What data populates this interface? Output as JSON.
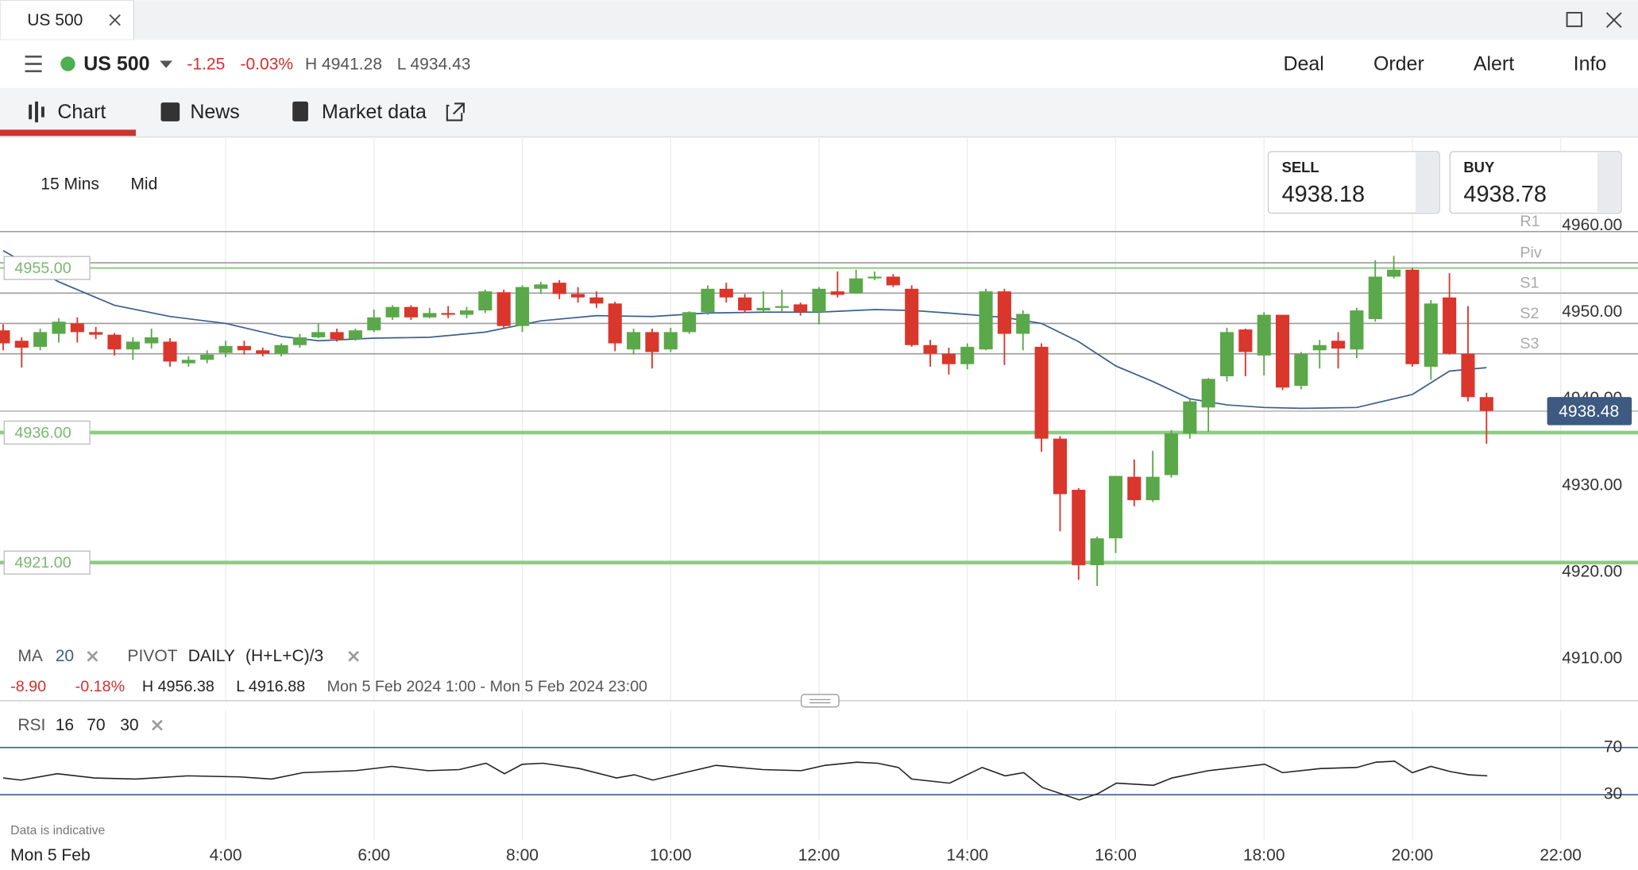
{
  "window": {
    "tab": "US 500"
  },
  "instrument": {
    "name": "US 500",
    "change": "-1.25",
    "change_pct": "-0.03%",
    "high": "H 4941.28",
    "low": "L 4934.43"
  },
  "actions": [
    "Deal",
    "Order",
    "Alert",
    "Info"
  ],
  "tabs": [
    "Chart",
    "News",
    "Market data"
  ],
  "settings": {
    "interval": "15 Mins",
    "price": "Mid"
  },
  "quote": {
    "sell_label": "SELL",
    "sell": "4938.18",
    "buy_label": "BUY",
    "buy": "4938.78"
  },
  "summary": {
    "change": "-8.90",
    "change_pct": "-0.18%",
    "high": "H 4956.38",
    "low": "L 4916.88",
    "range": "Mon 5 Feb 2024 1:00 - Mon 5 Feb 2024 23:00"
  },
  "notes": {
    "disclaimer": "Data is indicative"
  },
  "chart_data": [
    {
      "type": "candlestick",
      "x": [
        1,
        1.25,
        1.5,
        1.75,
        2,
        2.25,
        2.5,
        2.75,
        3,
        3.25,
        3.5,
        3.75,
        4,
        4.25,
        4.5,
        4.75,
        5,
        5.25,
        5.5,
        5.75,
        6,
        6.25,
        6.5,
        6.75,
        7,
        7.25,
        7.5,
        7.75,
        8,
        8.25,
        8.5,
        8.75,
        9,
        9.25,
        9.5,
        9.75,
        10,
        10.25,
        10.5,
        10.75,
        11,
        11.25,
        11.5,
        11.75,
        12,
        12.25,
        12.5,
        12.75,
        13,
        13.25,
        13.5,
        13.75,
        14,
        14.25,
        14.5,
        14.75,
        15,
        15.25,
        15.5,
        15.75,
        16,
        16.25,
        16.5,
        16.75,
        17,
        17.25,
        17.5,
        17.75,
        18,
        18.25,
        18.5,
        18.75,
        19,
        19.25,
        19.5,
        19.75,
        20,
        20.25,
        20.5,
        20.75,
        21
      ],
      "open": [
        4947.8,
        4946.6,
        4945.9,
        4947.4,
        4948.6,
        4947.6,
        4947.3,
        4945.6,
        4946.3,
        4946.5,
        4944.0,
        4944.4,
        4945.2,
        4946.0,
        4945.5,
        4945.1,
        4946.1,
        4947.0,
        4947.6,
        4946.8,
        4947.8,
        4949.3,
        4950.5,
        4949.3,
        4949.8,
        4949.6,
        4950.1,
        4952.2,
        4948.3,
        4952.6,
        4953.3,
        4952.0,
        4951.6,
        4950.9,
        4945.6,
        4947.6,
        4945.6,
        4947.6,
        4949.9,
        4952.6,
        4951.6,
        4950.1,
        4950.4,
        4950.8,
        4949.9,
        4952.3,
        4952.1,
        4953.8,
        4954.0,
        4952.6,
        4946.1,
        4945.1,
        4943.9,
        4945.6,
        4952.3,
        4947.4,
        4945.9,
        4935.3,
        4929.4,
        4920.7,
        4923.8,
        4930.9,
        4928.2,
        4931.1,
        4935.9,
        4938.9,
        4942.5,
        4947.9,
        4944.9,
        4949.6,
        4941.4,
        4945.5,
        4946.6,
        4945.6,
        4949.1,
        4954.0,
        4954.8,
        4943.6,
        4951.6,
        4945.1,
        4940.1
      ],
      "high": [
        4948.5,
        4947,
        4948,
        4949.2,
        4949.3,
        4948.2,
        4947.5,
        4947,
        4948,
        4946.9,
        4944.8,
        4945.5,
        4946.6,
        4946.6,
        4945.8,
        4946.3,
        4947.4,
        4948.6,
        4948,
        4948,
        4950.2,
        4950.7,
        4950.7,
        4950.4,
        4950.6,
        4950.5,
        4952.5,
        4952.5,
        4953,
        4953.4,
        4953.6,
        4952.8,
        4952.3,
        4951.1,
        4948,
        4948,
        4948.1,
        4950,
        4953,
        4953.3,
        4952,
        4952.3,
        4952.5,
        4951,
        4952.8,
        4954.6,
        4954.8,
        4954.6,
        4954.3,
        4953,
        4946.7,
        4945.8,
        4946.3,
        4952.6,
        4952.6,
        4950.1,
        4946.3,
        4935.6,
        4929.6,
        4924,
        4931,
        4932.9,
        4933.9,
        4936.3,
        4939.8,
        4942.3,
        4948.1,
        4948,
        4949.9,
        4949.6,
        4945.3,
        4946.7,
        4947.6,
        4950.4,
        4955.9,
        4956.4,
        4955,
        4951.3,
        4954.4,
        4950.6,
        4940.6
      ],
      "low": [
        4945.5,
        4943.5,
        4945.5,
        4946.4,
        4946.4,
        4946.8,
        4944.9,
        4944.4,
        4945.7,
        4943.6,
        4943.6,
        4944,
        4944.7,
        4945,
        4944.8,
        4944.8,
        4945.8,
        4946.9,
        4946.5,
        4946.6,
        4947.6,
        4949,
        4949,
        4949.2,
        4949.2,
        4949.2,
        4949.8,
        4948,
        4947.6,
        4952,
        4951.4,
        4951,
        4950.4,
        4945.4,
        4945,
        4943.4,
        4945.3,
        4947.4,
        4949.6,
        4951,
        4949.8,
        4950,
        4950,
        4949.5,
        4948.5,
        4951.6,
        4952,
        4953.6,
        4952.8,
        4945.9,
        4943.6,
        4942.7,
        4943.3,
        4945.5,
        4943.8,
        4945.5,
        4933.8,
        4924.6,
        4919,
        4918.3,
        4922.1,
        4927.5,
        4928,
        4930.8,
        4935.3,
        4936.1,
        4941.9,
        4942.5,
        4942.6,
        4940.9,
        4941,
        4943.4,
        4943.4,
        4944.6,
        4948.8,
        4953.8,
        4943.6,
        4942.1,
        4945,
        4939.6,
        4934.7
      ],
      "close": [
        4946.3,
        4945.8,
        4947.6,
        4948.8,
        4947.6,
        4947.3,
        4945.6,
        4946.5,
        4947.0,
        4944.2,
        4944.4,
        4945.0,
        4946.0,
        4945.5,
        4945.1,
        4946.1,
        4947.0,
        4947.6,
        4946.8,
        4947.8,
        4949.3,
        4950.5,
        4949.3,
        4949.8,
        4949.6,
        4950.1,
        4952.3,
        4948.3,
        4952.8,
        4953.1,
        4952.0,
        4951.6,
        4950.9,
        4946.3,
        4947.6,
        4945.3,
        4947.6,
        4949.9,
        4952.6,
        4951.6,
        4950.1,
        4950.4,
        4950.6,
        4949.9,
        4952.6,
        4951.9,
        4953.8,
        4954.0,
        4953.0,
        4946.1,
        4945.1,
        4943.9,
        4945.9,
        4952.3,
        4947.4,
        4949.7,
        4935.3,
        4928.9,
        4920.7,
        4923.8,
        4931.0,
        4928.2,
        4930.9,
        4935.9,
        4939.6,
        4942.2,
        4947.6,
        4945.3,
        4949.6,
        4941.2,
        4945.1,
        4946.1,
        4945.7,
        4950.1,
        4954.0,
        4954.8,
        4943.9,
        4950.9,
        4945.1,
        4940.1,
        4938.5
      ],
      "up_color": "#5aa84a",
      "down_color": "#d9362c",
      "xlim": [
        1,
        23
      ],
      "ylim": [
        4905,
        4970
      ],
      "yticks": [
        {
          "value": 4910,
          "label": "4910.00"
        },
        {
          "value": 4920,
          "label": "4920.00"
        },
        {
          "value": 4930,
          "label": "4930.00"
        },
        {
          "value": 4940,
          "label": "4940.00"
        },
        {
          "value": 4950,
          "label": "4950.00"
        },
        {
          "value": 4960,
          "label": "4960.00"
        }
      ],
      "grid": "x",
      "ma": {
        "name": "MA",
        "period": 20,
        "color": "#3b5f8f",
        "x": [
          1,
          1.75,
          2.5,
          3.25,
          4,
          4.75,
          5.25,
          6,
          6.75,
          7.5,
          8.25,
          9,
          9.75,
          10.5,
          11.25,
          12,
          12.75,
          13.25,
          13.75,
          14.5,
          15,
          15.5,
          16,
          16.5,
          17,
          17.5,
          18,
          18.5,
          19.25,
          20,
          20.5,
          21
        ],
        "values": [
          4957,
          4953.4,
          4950.7,
          4949.4,
          4948.6,
          4947.1,
          4946.6,
          4946.9,
          4947,
          4947.6,
          4948.9,
          4949.5,
          4949.4,
          4949.8,
          4949.9,
          4949.9,
          4950.2,
          4950.1,
          4949.8,
          4949.3,
          4948.6,
          4946.5,
          4943.7,
          4941.9,
          4939.9,
          4939.2,
          4938.9,
          4938.8,
          4938.9,
          4940.4,
          4943.1,
          4943.5
        ]
      },
      "pivot": {
        "name": "PIVOT",
        "period": "DAILY",
        "formula": "(H+L+C)/3",
        "color": "#9a9a9a",
        "levels": [
          {
            "name": "R1",
            "value": 4959.2
          },
          {
            "name": "Piv",
            "value": 4955.6
          },
          {
            "name": "S1",
            "value": 4952.1
          },
          {
            "name": "S2",
            "value": 4948.6
          },
          {
            "name": "S3",
            "value": 4945.1
          }
        ]
      },
      "alerts": {
        "color": "#8fcb86",
        "levels": [
          {
            "value": 4955,
            "label": "4955.00"
          },
          {
            "value": 4936,
            "label": "4936.00"
          },
          {
            "value": 4921,
            "label": "4921.00"
          }
        ]
      },
      "last_price": 4938.48,
      "last_color": "#3d5a80"
    },
    {
      "type": "line",
      "name": "RSI",
      "period": 16,
      "upper": 70,
      "lower": 30,
      "color": "#222222",
      "band_color": "#3b5f8f",
      "x": [
        1,
        1.24,
        1.73,
        2.23,
        2.79,
        3.49,
        4.2,
        4.62,
        5.04,
        5.75,
        6.24,
        6.73,
        7.15,
        7.51,
        7.76,
        8,
        8.28,
        8.77,
        9.27,
        9.51,
        9.76,
        10.25,
        10.61,
        11.24,
        11.76,
        12.08,
        12.51,
        12.79,
        13.07,
        13.25,
        13.76,
        14.2,
        14.51,
        14.76,
        15.01,
        15.51,
        15.76,
        16.01,
        16.51,
        16.76,
        17.25,
        17.76,
        18.01,
        18.25,
        18.76,
        19.25,
        19.51,
        19.76,
        20,
        20.25,
        20.51,
        20.76,
        21.01
      ],
      "values": [
        44.2,
        42.4,
        47.8,
        44.2,
        43.3,
        46,
        45.1,
        43.3,
        48.7,
        50.4,
        54,
        50.4,
        51.3,
        56.7,
        47.8,
        55.8,
        56.7,
        52.2,
        44.2,
        46.9,
        42.4,
        49.6,
        54.9,
        51.3,
        50.4,
        54.9,
        57.6,
        56.7,
        53.1,
        43.3,
        39.8,
        53.1,
        46,
        48.7,
        36.2,
        25.6,
        30.9,
        39.8,
        38,
        44.2,
        50.4,
        54,
        55.8,
        48.7,
        52.2,
        53.1,
        57.6,
        58.4,
        48.7,
        54,
        49.6,
        46.9,
        46
      ],
      "xlim": [
        1,
        23
      ],
      "xticks": [
        {
          "value": 4,
          "label": "4:00"
        },
        {
          "value": 6,
          "label": "6:00"
        },
        {
          "value": 8,
          "label": "8:00"
        },
        {
          "value": 10,
          "label": "10:00"
        },
        {
          "value": 12,
          "label": "12:00"
        },
        {
          "value": 14,
          "label": "14:00"
        },
        {
          "value": 16,
          "label": "16:00"
        },
        {
          "value": 18,
          "label": "18:00"
        },
        {
          "value": 20,
          "label": "20:00"
        },
        {
          "value": 22,
          "label": "22:00"
        }
      ],
      "xlabel": "Mon 5 Feb",
      "ylim": [
        0,
        100
      ],
      "yticks": [
        70,
        30
      ]
    }
  ]
}
